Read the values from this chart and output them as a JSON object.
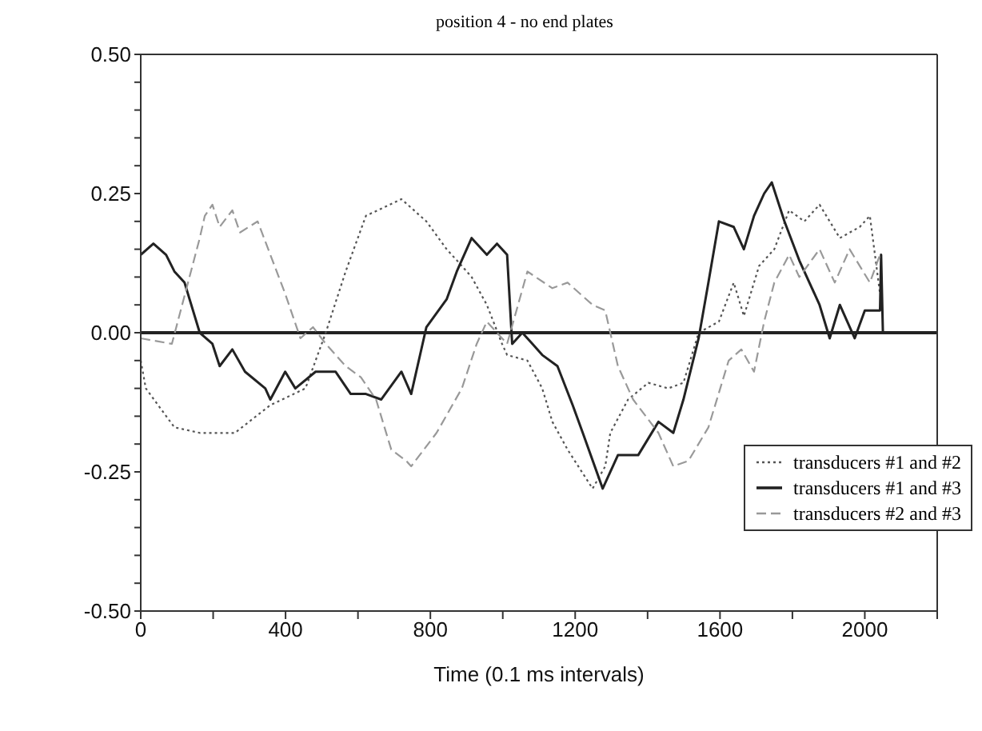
{
  "chart_data": {
    "type": "line",
    "title": "position 4 - no end plates",
    "xlabel": "Time    (0.1 ms intervals)",
    "xlim": [
      0,
      2200
    ],
    "xticks": [
      0,
      {
        "value": 200,
        "label": null
      },
      400,
      {
        "value": 600,
        "label": null
      },
      800,
      {
        "value": 1000,
        "label": null
      },
      1200,
      {
        "value": 1400,
        "label": null
      },
      1600,
      {
        "value": 1800,
        "label": null
      },
      2000,
      {
        "value": 2200,
        "label": null
      }
    ],
    "ylim": [
      -0.5,
      0.5
    ],
    "yticks": [
      {
        "value": -0.5,
        "label": "-0.50"
      },
      {
        "value": -0.45,
        "label": null
      },
      {
        "value": -0.4,
        "label": null
      },
      {
        "value": -0.35,
        "label": null
      },
      {
        "value": -0.3,
        "label": null
      },
      {
        "value": -0.25,
        "label": "-0.25"
      },
      {
        "value": -0.2,
        "label": null
      },
      {
        "value": -0.15,
        "label": null
      },
      {
        "value": -0.1,
        "label": null
      },
      {
        "value": -0.05,
        "label": null
      },
      {
        "value": 0,
        "label": "0.00"
      },
      {
        "value": 0.05,
        "label": null
      },
      {
        "value": 0.1,
        "label": null
      },
      {
        "value": 0.15,
        "label": null
      },
      {
        "value": 0.2,
        "label": null
      },
      {
        "value": 0.25,
        "label": "0.25"
      },
      {
        "value": 0.3,
        "label": null
      },
      {
        "value": 0.35,
        "label": null
      },
      {
        "value": 0.4,
        "label": null
      },
      {
        "value": 0.45,
        "label": null
      },
      {
        "value": 0.5,
        "label": "0.50"
      }
    ],
    "legend": "bottom right",
    "marker": "none",
    "ref_lines": [
      {
        "axis": "y",
        "value": 0,
        "color": "#222222"
      }
    ],
    "series": [
      {
        "name": "transducers #1 and #2",
        "color": "#555555",
        "line_style": "dotted",
        "x": [
          0,
          14,
          93,
          163,
          260,
          358,
          455,
          511,
          566,
          622,
          720,
          789,
          845,
          887,
          914,
          956,
          998,
          1012,
          1068,
          1109,
          1137,
          1179,
          1248,
          1283,
          1297,
          1346,
          1402,
          1457,
          1499,
          1541,
          1597,
          1638,
          1666,
          1708,
          1750,
          1791,
          1833,
          1875,
          1931,
          1986,
          2014,
          2042
        ],
        "values": [
          -0.05,
          -0.1,
          -0.17,
          -0.18,
          -0.18,
          -0.13,
          -0.1,
          0,
          0.11,
          0.21,
          0.24,
          0.2,
          0.15,
          0.12,
          0.1,
          0.05,
          -0.02,
          -0.04,
          -0.05,
          -0.1,
          -0.16,
          -0.21,
          -0.28,
          -0.24,
          -0.18,
          -0.12,
          -0.09,
          -0.1,
          -0.09,
          0,
          0.02,
          0.09,
          0.03,
          0.12,
          0.15,
          0.22,
          0.2,
          0.23,
          0.17,
          0.19,
          0.21,
          0.07
        ]
      },
      {
        "name": "transducers #1 and #3",
        "color": "#222222",
        "line_style": "solid",
        "x": [
          0,
          35,
          70,
          93,
          121,
          163,
          198,
          218,
          253,
          288,
          344,
          358,
          399,
          427,
          483,
          538,
          580,
          622,
          664,
          720,
          747,
          789,
          845,
          873,
          914,
          956,
          984,
          1012,
          1026,
          1054,
          1082,
          1109,
          1151,
          1193,
          1221,
          1276,
          1318,
          1374,
          1430,
          1471,
          1499,
          1541,
          1568,
          1597,
          1638,
          1666,
          1694,
          1722,
          1743,
          1778,
          1819,
          1875,
          1903,
          1931,
          1972,
          2000,
          2042,
          2045,
          2050
        ],
        "values": [
          0.14,
          0.16,
          0.14,
          0.11,
          0.09,
          0,
          -0.02,
          -0.06,
          -0.03,
          -0.07,
          -0.1,
          -0.12,
          -0.07,
          -0.1,
          -0.07,
          -0.07,
          -0.11,
          -0.11,
          -0.12,
          -0.07,
          -0.11,
          0.01,
          0.06,
          0.11,
          0.17,
          0.14,
          0.16,
          0.14,
          -0.02,
          0,
          -0.02,
          -0.04,
          -0.06,
          -0.13,
          -0.18,
          -0.28,
          -0.22,
          -0.22,
          -0.16,
          -0.18,
          -0.12,
          -0.01,
          0.09,
          0.2,
          0.19,
          0.15,
          0.21,
          0.25,
          0.27,
          0.2,
          0.13,
          0.05,
          -0.01,
          0.05,
          -0.01,
          0.04,
          0.04,
          0.14,
          0
        ]
      },
      {
        "name": "transducers #2 and #3",
        "color": "#999999",
        "line_style": "dashed",
        "x": [
          0,
          86,
          163,
          177,
          198,
          218,
          253,
          274,
          323,
          358,
          399,
          441,
          476,
          511,
          566,
          608,
          650,
          692,
          733,
          747,
          817,
          887,
          928,
          956,
          1012,
          1068,
          1137,
          1179,
          1248,
          1283,
          1318,
          1360,
          1430,
          1471,
          1513,
          1568,
          1624,
          1659,
          1694,
          1722,
          1750,
          1791,
          1819,
          1875,
          1917,
          1958,
          2014,
          2042
        ],
        "values": [
          -0.01,
          -0.02,
          0.17,
          0.21,
          0.23,
          0.19,
          0.22,
          0.18,
          0.2,
          0.14,
          0.07,
          -0.01,
          0.01,
          -0.02,
          -0.06,
          -0.08,
          -0.12,
          -0.21,
          -0.23,
          -0.24,
          -0.18,
          -0.1,
          -0.02,
          0.02,
          -0.02,
          0.11,
          0.08,
          0.09,
          0.05,
          0.04,
          -0.06,
          -0.12,
          -0.18,
          -0.24,
          -0.23,
          -0.17,
          -0.05,
          -0.03,
          -0.07,
          0.02,
          0.09,
          0.14,
          0.1,
          0.15,
          0.09,
          0.15,
          0.09,
          0.14
        ]
      }
    ]
  }
}
